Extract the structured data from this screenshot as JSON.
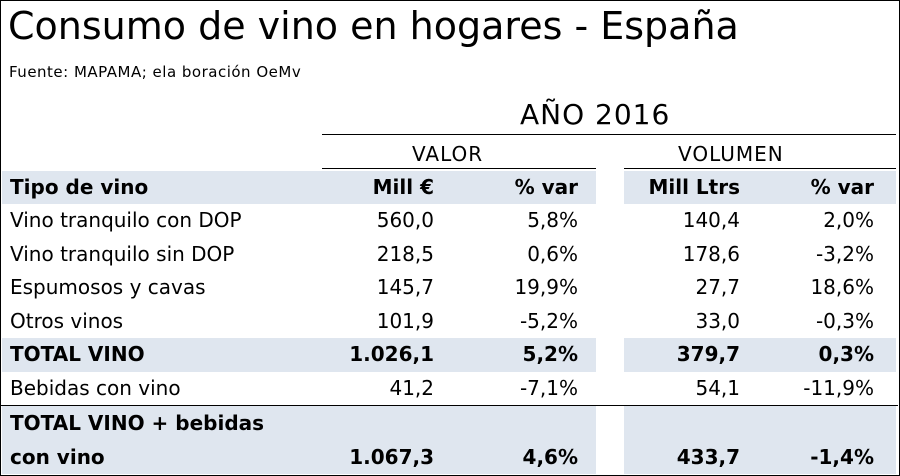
{
  "title": "Consumo de vino en hogares - España",
  "source": "Fuente: MAPAMA; ela boración OeMv",
  "year_label": "AÑO 2016",
  "groups": {
    "valor": "VALOR",
    "volumen": "VOLUMEN"
  },
  "header": {
    "tipo": "Tipo de vino",
    "mill_eur": "Mill €",
    "var1": "% var",
    "mill_ltrs": "Mill Ltrs",
    "var2": "% var"
  },
  "rows": [
    {
      "tipo": "Vino tranquilo con DOP",
      "valor": "560,0",
      "valor_var": "5,8%",
      "volumen": "140,4",
      "volumen_var": "2,0%"
    },
    {
      "tipo": "Vino tranquilo sin DOP",
      "valor": "218,5",
      "valor_var": "0,6%",
      "volumen": "178,6",
      "volumen_var": "-3,2%"
    },
    {
      "tipo": "Espumosos y cavas",
      "valor": "145,7",
      "valor_var": "19,9%",
      "volumen": "27,7",
      "volumen_var": "18,6%"
    },
    {
      "tipo": "Otros vinos",
      "valor": "101,9",
      "valor_var": "-5,2%",
      "volumen": "33,0",
      "volumen_var": "-0,3%"
    },
    {
      "tipo": "TOTAL VINO",
      "valor": "1.026,1",
      "valor_var": "5,2%",
      "volumen": "379,7",
      "volumen_var": "0,3%"
    },
    {
      "tipo": "Bebidas con vino",
      "valor": "41,2",
      "valor_var": "-7,1%",
      "volumen": "54,1",
      "volumen_var": "-11,9%"
    }
  ],
  "grand_total": {
    "tipo_line1": "TOTAL VINO + bebidas",
    "tipo_line2": "con vino",
    "valor": "1.067,3",
    "valor_var": "4,6%",
    "volumen": "433,7",
    "volumen_var": "-1,4%"
  }
}
